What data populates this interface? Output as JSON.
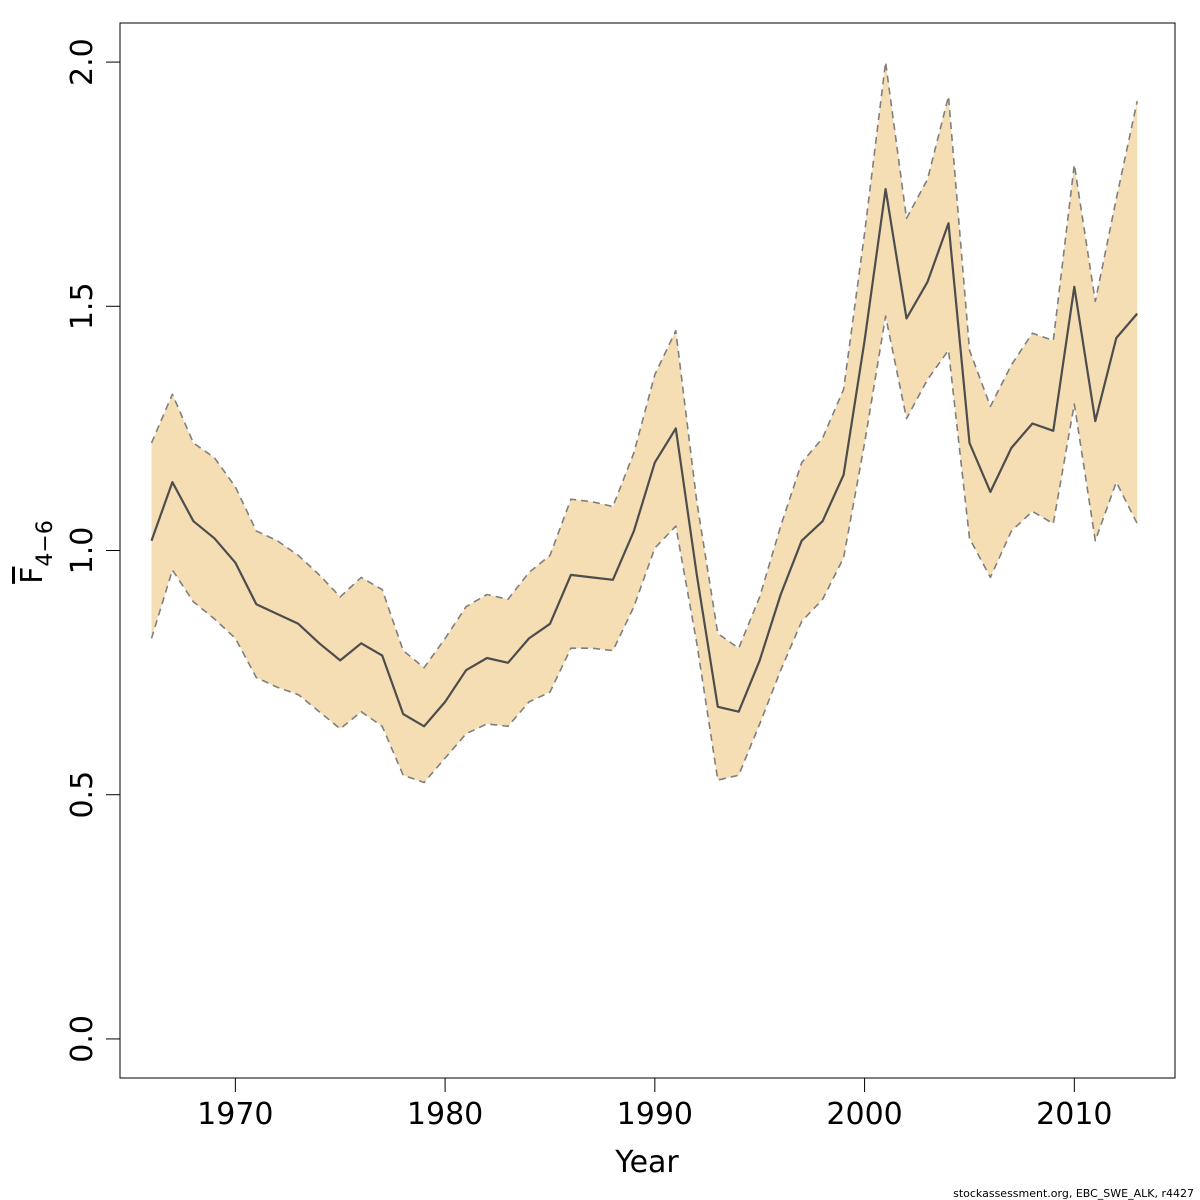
{
  "chart_data": {
    "type": "line",
    "xlabel": "Year",
    "ylabel": {
      "main": "F",
      "sub": "4−6"
    },
    "xlim": [
      1964.5,
      2014.8
    ],
    "ylim": [
      -0.08,
      2.08
    ],
    "x_ticks": [
      1970,
      1980,
      1990,
      2000,
      2010
    ],
    "x_tick_labels": [
      "1970",
      "1980",
      "1990",
      "2000",
      "2010"
    ],
    "y_ticks": [
      0.0,
      0.5,
      1.0,
      1.5,
      2.0
    ],
    "y_tick_labels": [
      "0.0",
      "0.5",
      "1.0",
      "1.5",
      "2.0"
    ],
    "grid": false,
    "legend": "none",
    "colors": {
      "band": "#F5DEB3",
      "line": "#4D4D4D",
      "bounds": "#7F7F7F",
      "axis": "#000000"
    },
    "x": [
      1966,
      1967,
      1968,
      1969,
      1970,
      1971,
      1972,
      1973,
      1974,
      1975,
      1976,
      1977,
      1978,
      1979,
      1980,
      1981,
      1982,
      1983,
      1984,
      1985,
      1986,
      1987,
      1988,
      1989,
      1990,
      1991,
      1992,
      1993,
      1994,
      1995,
      1996,
      1997,
      1998,
      1999,
      2000,
      2001,
      2002,
      2003,
      2004,
      2005,
      2006,
      2007,
      2008,
      2009,
      2010,
      2011,
      2012,
      2013
    ],
    "series": [
      {
        "role": "estimate",
        "values": [
          1.02,
          1.14,
          1.06,
          1.025,
          0.975,
          0.89,
          0.87,
          0.85,
          0.81,
          0.775,
          0.81,
          0.785,
          0.665,
          0.64,
          0.69,
          0.755,
          0.78,
          0.77,
          0.82,
          0.85,
          0.95,
          0.945,
          0.94,
          1.04,
          1.18,
          1.25,
          0.95,
          0.68,
          0.67,
          0.775,
          0.91,
          1.02,
          1.06,
          1.155,
          1.43,
          1.74,
          1.475,
          1.55,
          1.67,
          1.22,
          1.12,
          1.21,
          1.26,
          1.245,
          1.54,
          1.265,
          1.435,
          1.485
        ]
      },
      {
        "role": "upper",
        "values": [
          1.22,
          1.32,
          1.22,
          1.19,
          1.13,
          1.04,
          1.02,
          0.99,
          0.95,
          0.905,
          0.945,
          0.92,
          0.795,
          0.76,
          0.82,
          0.885,
          0.91,
          0.9,
          0.955,
          0.99,
          1.105,
          1.1,
          1.09,
          1.2,
          1.36,
          1.45,
          1.1,
          0.83,
          0.8,
          0.905,
          1.05,
          1.18,
          1.23,
          1.33,
          1.65,
          2.0,
          1.68,
          1.76,
          1.93,
          1.41,
          1.295,
          1.38,
          1.445,
          1.43,
          1.79,
          1.51,
          1.72,
          1.92
        ]
      },
      {
        "role": "lower",
        "values": [
          0.82,
          0.96,
          0.895,
          0.86,
          0.82,
          0.74,
          0.72,
          0.705,
          0.67,
          0.635,
          0.67,
          0.64,
          0.54,
          0.525,
          0.575,
          0.625,
          0.645,
          0.64,
          0.69,
          0.71,
          0.8,
          0.8,
          0.795,
          0.885,
          1.005,
          1.05,
          0.81,
          0.53,
          0.54,
          0.645,
          0.755,
          0.855,
          0.9,
          0.985,
          1.22,
          1.48,
          1.27,
          1.35,
          1.41,
          1.025,
          0.945,
          1.04,
          1.08,
          1.055,
          1.3,
          1.02,
          1.14,
          1.055
        ]
      }
    ]
  },
  "footer": "stockassessment.org, EBC_SWE_ALK, r4427"
}
